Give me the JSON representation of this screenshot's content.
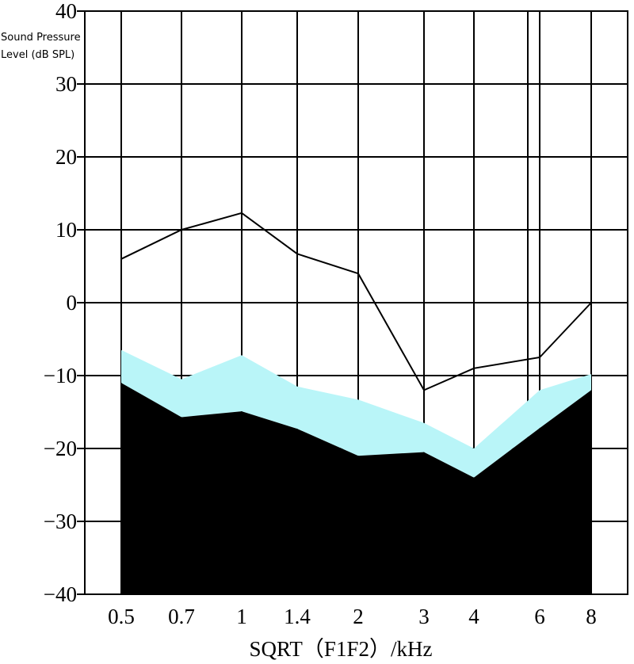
{
  "chart_data": {
    "type": "area",
    "title": "",
    "xlabel": "SQRT（F1F2）/kHz",
    "ylabel_line1": "Sound Pressure",
    "ylabel_line2": "Level (dB SPL)",
    "ylim": [
      -40,
      40
    ],
    "yticks": [
      "40",
      "30",
      "20",
      "10",
      "0",
      "−10",
      "−20",
      "−30",
      "−40"
    ],
    "yticks_values": [
      40,
      30,
      20,
      10,
      0,
      -10,
      -20,
      -30,
      -40
    ],
    "x_tick_labels": [
      "0.5",
      "0.7",
      "1",
      "1.4",
      "2",
      "3",
      "4",
      "6",
      "8"
    ],
    "grid": true,
    "series": [
      {
        "x": [
          "0.5",
          "0.7",
          "1",
          "1.4",
          "2",
          "3",
          "4",
          "6",
          "8"
        ],
        "values": [
          6,
          10,
          12.3,
          6.7,
          4,
          -12,
          -9,
          -7.5,
          0
        ],
        "color": "#000000",
        "style": "line"
      },
      {
        "x": [
          "0.5",
          "0.7",
          "1",
          "1.4",
          "2",
          "3",
          "4",
          "6",
          "8"
        ],
        "values": [
          -6.5,
          -10.5,
          -7.2,
          -11.5,
          -13.3,
          -16.5,
          -20,
          -12,
          -9.8
        ],
        "color": "#b9f5f8",
        "style": "band-upper"
      },
      {
        "x": [
          "0.5",
          "0.7",
          "1",
          "1.4",
          "2",
          "3",
          "4",
          "6",
          "8"
        ],
        "values": [
          -11,
          -15.7,
          -14.9,
          -17.3,
          -21,
          -20.5,
          -24,
          -17.2,
          -12
        ],
        "color": "#000000",
        "style": "filled-below"
      }
    ]
  }
}
